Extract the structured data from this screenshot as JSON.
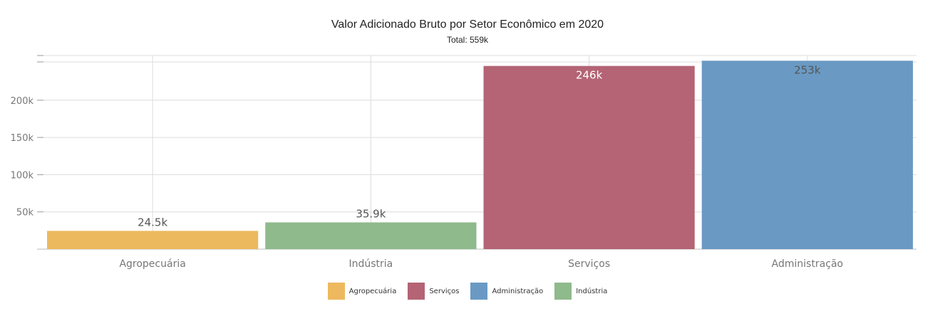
{
  "chart_data": {
    "type": "bar",
    "title": "Valor Adicionado Bruto por Setor Econômico em 2020",
    "subtitle": "Total: 559k",
    "categories": [
      "Agropecuária",
      "Indústria",
      "Serviços",
      "Administração"
    ],
    "values": [
      24500,
      35900,
      246000,
      253000
    ],
    "data_labels": [
      "24.5k",
      "35.9k",
      "246k",
      "253k"
    ],
    "colors": [
      "#EDB95E",
      "#8FBA8C",
      "#B46474",
      "#6A9AC4"
    ],
    "ylim": [
      0,
      260000
    ],
    "yticks": [
      50000,
      100000,
      150000,
      200000
    ],
    "ytick_labels": [
      "50k",
      "100k",
      "150k",
      "200k"
    ],
    "grid": true,
    "legend_position": "bottom",
    "legend": [
      {
        "label": "Agropecuária",
        "color": "#EDB95E"
      },
      {
        "label": "Serviços",
        "color": "#B46474"
      },
      {
        "label": "Administração",
        "color": "#6A9AC4"
      },
      {
        "label": "Indústria",
        "color": "#8FBA8C"
      }
    ]
  }
}
